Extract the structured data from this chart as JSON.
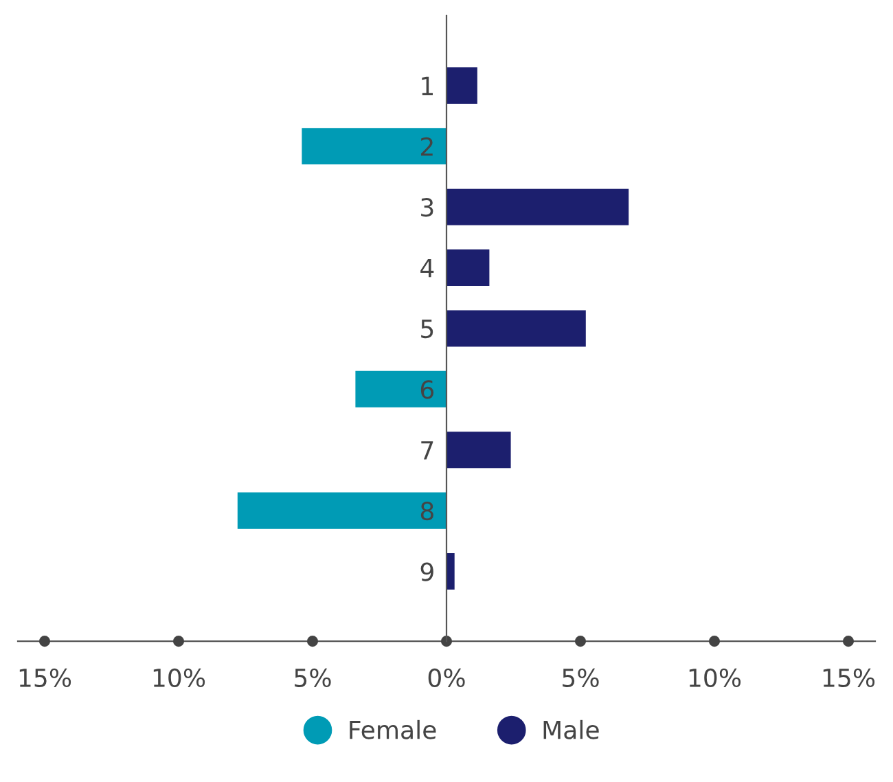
{
  "chart_data": {
    "type": "bar",
    "orientation": "horizontal",
    "categories": [
      "1",
      "2",
      "3",
      "4",
      "5",
      "6",
      "7",
      "8",
      "9"
    ],
    "series": [
      {
        "name": "Female",
        "color": "#009bb5",
        "values": [
          null,
          -5.4,
          null,
          null,
          null,
          -3.4,
          null,
          -7.8,
          null
        ]
      },
      {
        "name": "Male",
        "color": "#1c1f6e",
        "values": [
          1.15,
          null,
          6.8,
          1.6,
          5.2,
          null,
          2.4,
          null,
          0.3
        ]
      }
    ],
    "xlim": [
      -16,
      16
    ],
    "xticks": [
      {
        "value": -15,
        "label": "15%"
      },
      {
        "value": -10,
        "label": "10%"
      },
      {
        "value": -5,
        "label": "5%"
      },
      {
        "value": 0,
        "label": "0%"
      },
      {
        "value": 5,
        "label": "5%"
      },
      {
        "value": 10,
        "label": "10%"
      },
      {
        "value": 15,
        "label": "15%"
      }
    ],
    "grid": false,
    "legend": "bottom"
  }
}
